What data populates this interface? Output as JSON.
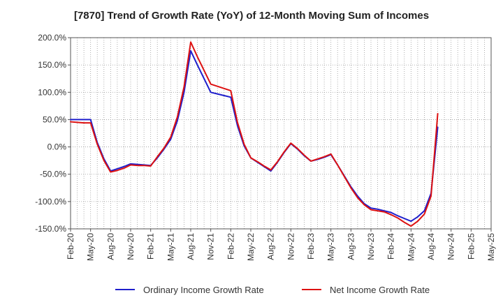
{
  "colors": {
    "ordinary": "#1f1fcc",
    "net": "#dd1111",
    "grid": "#999999",
    "axis": "#555555"
  },
  "chart_data": {
    "type": "line",
    "title": "[7870]  Trend of Growth Rate (YoY) of 12-Month Moving Sum of Incomes",
    "x_tick_labels": [
      "Feb-20",
      "May-20",
      "Aug-20",
      "Nov-20",
      "Feb-21",
      "May-21",
      "Aug-21",
      "Nov-21",
      "Feb-22",
      "May-22",
      "Aug-22",
      "Nov-22",
      "Feb-23",
      "May-23",
      "Aug-23",
      "Nov-23",
      "Feb-24",
      "May-24",
      "Aug-24",
      "Nov-24",
      "Feb-25",
      "May-25"
    ],
    "y_tick_labels": [
      "200.0%",
      "150.0%",
      "100.0%",
      "50.0%",
      "0.0%",
      "-50.0%",
      "-100.0%",
      "-150.0%"
    ],
    "ylim": [
      -150,
      200
    ],
    "y_unit": "%",
    "grid": true,
    "legend_position": "bottom",
    "series": [
      {
        "name": "Ordinary Income Growth Rate",
        "color": "#1f1fcc",
        "x": [
          "2020-02",
          "2020-03",
          "2020-04",
          "2020-05",
          "2020-06",
          "2020-07",
          "2020-08",
          "2020-09",
          "2020-10",
          "2020-11",
          "2020-12",
          "2021-01",
          "2021-02",
          "2021-03",
          "2021-04",
          "2021-05",
          "2021-06",
          "2021-07",
          "2021-08",
          "2021-09",
          "2021-10",
          "2021-11",
          "2021-12",
          "2022-01",
          "2022-02",
          "2022-03",
          "2022-04",
          "2022-05",
          "2022-06",
          "2022-07",
          "2022-08",
          "2022-09",
          "2022-10",
          "2022-11",
          "2022-12",
          "2023-01",
          "2023-02",
          "2023-03",
          "2023-04",
          "2023-05",
          "2023-06",
          "2023-07",
          "2023-08",
          "2023-09",
          "2023-10",
          "2023-11",
          "2023-12",
          "2024-01",
          "2024-02",
          "2024-03",
          "2024-04",
          "2024-05",
          "2024-06",
          "2024-07",
          "2024-08",
          "2024-09"
        ],
        "values": [
          50,
          50,
          50,
          50,
          8,
          -22,
          -44,
          -40,
          -36,
          -31,
          -32,
          -33,
          -34,
          -20,
          -4,
          14,
          48,
          100,
          176,
          150,
          125,
          100,
          97,
          94,
          91,
          39,
          2,
          -20,
          -28,
          -36,
          -44,
          -28,
          -10,
          6,
          -4,
          -16,
          -26,
          -23,
          -19,
          -14,
          -33,
          -53,
          -73,
          -90,
          -104,
          -112,
          -114,
          -117,
          -120,
          -126,
          -131,
          -136,
          -128,
          -117,
          -85,
          36
        ]
      },
      {
        "name": "Net Income Growth Rate",
        "color": "#dd1111",
        "x": [
          "2020-02",
          "2020-03",
          "2020-04",
          "2020-05",
          "2020-06",
          "2020-07",
          "2020-08",
          "2020-09",
          "2020-10",
          "2020-11",
          "2020-12",
          "2021-01",
          "2021-02",
          "2021-03",
          "2021-04",
          "2021-05",
          "2021-06",
          "2021-07",
          "2021-08",
          "2021-09",
          "2021-10",
          "2021-11",
          "2021-12",
          "2022-01",
          "2022-02",
          "2022-03",
          "2022-04",
          "2022-05",
          "2022-06",
          "2022-07",
          "2022-08",
          "2022-09",
          "2022-10",
          "2022-11",
          "2022-12",
          "2023-01",
          "2023-02",
          "2023-03",
          "2023-04",
          "2023-05",
          "2023-06",
          "2023-07",
          "2023-08",
          "2023-09",
          "2023-10",
          "2023-11",
          "2023-12",
          "2024-01",
          "2024-02",
          "2024-03",
          "2024-04",
          "2024-05",
          "2024-06",
          "2024-07",
          "2024-08",
          "2024-09"
        ],
        "values": [
          46,
          45,
          44,
          44,
          5,
          -25,
          -46,
          -43,
          -39,
          -33,
          -34,
          -34,
          -35,
          -18,
          -2,
          18,
          55,
          110,
          192,
          165,
          140,
          115,
          111,
          107,
          103,
          45,
          5,
          -20,
          -27,
          -35,
          -42,
          -27,
          -9,
          7,
          -3,
          -15,
          -26,
          -22,
          -18,
          -13,
          -33,
          -54,
          -75,
          -93,
          -106,
          -115,
          -117,
          -119,
          -124,
          -130,
          -138,
          -145,
          -136,
          -123,
          -90,
          61
        ]
      }
    ]
  }
}
